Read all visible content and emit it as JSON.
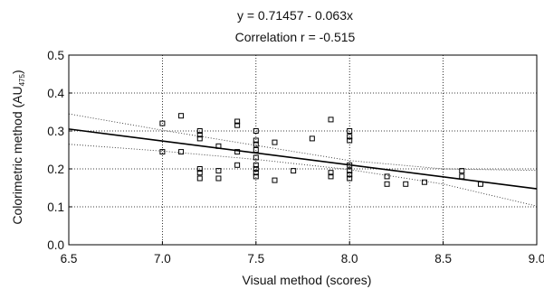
{
  "chart_data": {
    "type": "scatter",
    "title_line1": "y = 0.71457 - 0.063x",
    "title_line2": "Correlation r = -0.515",
    "xlabel": "Visual method (scores)",
    "ylabel_main": "Colorimetric method (AU",
    "ylabel_sub": "475",
    "ylabel_close": ")",
    "xlim": [
      6.5,
      9.0
    ],
    "ylim": [
      0.0,
      0.5
    ],
    "xticks": [
      "6.5",
      "7.0",
      "7.5",
      "8.0",
      "8.5",
      "9.0"
    ],
    "yticks": [
      "0.0",
      "0.1",
      "0.2",
      "0.3",
      "0.4",
      "0.5"
    ],
    "grid": true,
    "marker": "square-open",
    "regression": {
      "intercept": 0.71457,
      "slope": -0.063
    },
    "confidence_band": {
      "upper": [
        [
          6.5,
          0.345
        ],
        [
          7.0,
          0.302
        ],
        [
          7.5,
          0.262
        ],
        [
          8.0,
          0.222
        ],
        [
          8.5,
          0.2
        ],
        [
          9.0,
          0.196
        ]
      ],
      "lower": [
        [
          6.5,
          0.265
        ],
        [
          7.0,
          0.247
        ],
        [
          7.5,
          0.225
        ],
        [
          8.0,
          0.198
        ],
        [
          8.5,
          0.16
        ],
        [
          9.0,
          0.102
        ]
      ]
    },
    "points": [
      [
        7.0,
        0.32
      ],
      [
        7.0,
        0.245
      ],
      [
        7.1,
        0.34
      ],
      [
        7.1,
        0.245
      ],
      [
        7.2,
        0.3
      ],
      [
        7.2,
        0.29
      ],
      [
        7.2,
        0.28
      ],
      [
        7.2,
        0.2
      ],
      [
        7.2,
        0.19
      ],
      [
        7.2,
        0.175
      ],
      [
        7.3,
        0.26
      ],
      [
        7.3,
        0.195
      ],
      [
        7.3,
        0.175
      ],
      [
        7.4,
        0.325
      ],
      [
        7.4,
        0.315
      ],
      [
        7.4,
        0.245
      ],
      [
        7.4,
        0.21
      ],
      [
        7.5,
        0.3
      ],
      [
        7.5,
        0.275
      ],
      [
        7.5,
        0.265
      ],
      [
        7.5,
        0.25
      ],
      [
        7.5,
        0.23
      ],
      [
        7.5,
        0.21
      ],
      [
        7.5,
        0.2
      ],
      [
        7.5,
        0.19
      ],
      [
        7.5,
        0.18
      ],
      [
        7.6,
        0.27
      ],
      [
        7.6,
        0.17
      ],
      [
        7.7,
        0.195
      ],
      [
        7.8,
        0.28
      ],
      [
        7.9,
        0.33
      ],
      [
        7.9,
        0.19
      ],
      [
        7.9,
        0.18
      ],
      [
        8.0,
        0.3
      ],
      [
        8.0,
        0.285
      ],
      [
        8.0,
        0.275
      ],
      [
        8.0,
        0.21
      ],
      [
        8.0,
        0.195
      ],
      [
        8.0,
        0.185
      ],
      [
        8.0,
        0.175
      ],
      [
        8.2,
        0.18
      ],
      [
        8.2,
        0.16
      ],
      [
        8.3,
        0.16
      ],
      [
        8.4,
        0.165
      ],
      [
        8.6,
        0.195
      ],
      [
        8.6,
        0.18
      ],
      [
        8.7,
        0.16
      ]
    ]
  }
}
